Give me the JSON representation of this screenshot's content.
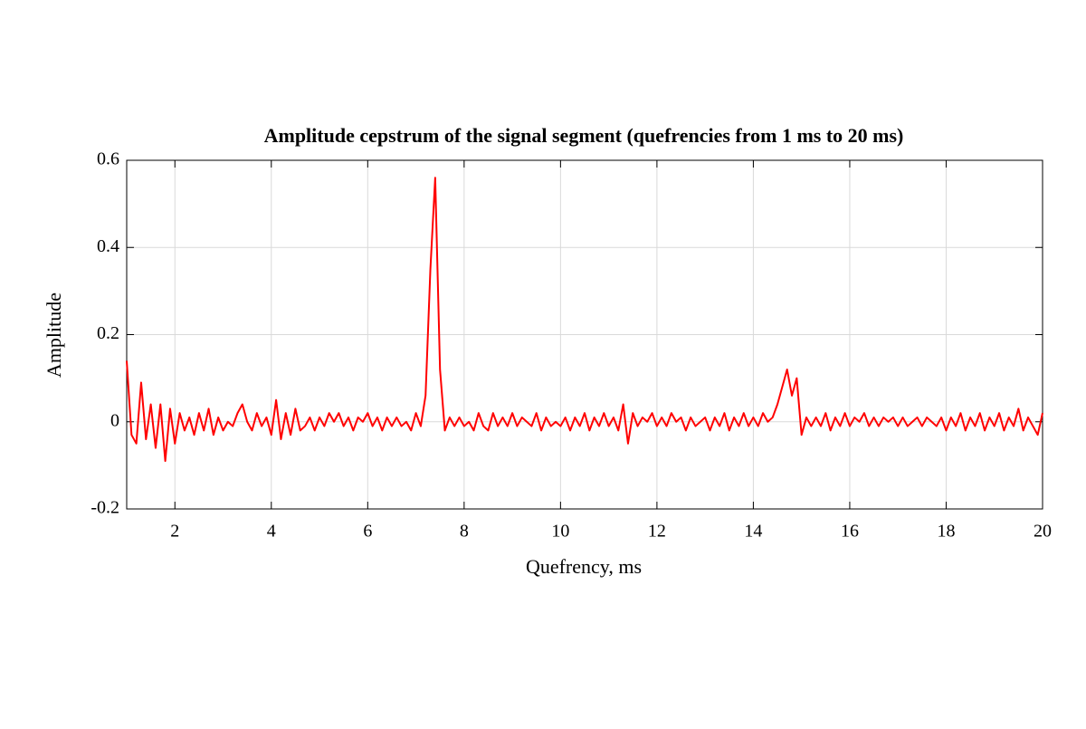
{
  "chart_data": {
    "type": "line",
    "title": "Amplitude cepstrum of the signal segment (quefrencies from 1 ms to 20 ms)",
    "xlabel": "Quefrency, ms",
    "ylabel": "Amplitude",
    "xlim": [
      1,
      20
    ],
    "ylim": [
      -0.2,
      0.6
    ],
    "xticks": [
      2,
      4,
      6,
      8,
      10,
      12,
      14,
      16,
      18,
      20
    ],
    "yticks": [
      -0.2,
      0,
      0.2,
      0.4,
      0.6
    ],
    "grid": true,
    "x": [
      1.0,
      1.1,
      1.2,
      1.3,
      1.4,
      1.5,
      1.6,
      1.7,
      1.8,
      1.9,
      2.0,
      2.1,
      2.2,
      2.3,
      2.4,
      2.5,
      2.6,
      2.7,
      2.8,
      2.9,
      3.0,
      3.1,
      3.2,
      3.3,
      3.4,
      3.5,
      3.6,
      3.7,
      3.8,
      3.9,
      4.0,
      4.1,
      4.2,
      4.3,
      4.4,
      4.5,
      4.6,
      4.7,
      4.8,
      4.9,
      5.0,
      5.1,
      5.2,
      5.3,
      5.4,
      5.5,
      5.6,
      5.7,
      5.8,
      5.9,
      6.0,
      6.1,
      6.2,
      6.3,
      6.4,
      6.5,
      6.6,
      6.7,
      6.8,
      6.9,
      7.0,
      7.1,
      7.2,
      7.3,
      7.4,
      7.5,
      7.6,
      7.7,
      7.8,
      7.9,
      8.0,
      8.1,
      8.2,
      8.3,
      8.4,
      8.5,
      8.6,
      8.7,
      8.8,
      8.9,
      9.0,
      9.1,
      9.2,
      9.3,
      9.4,
      9.5,
      9.6,
      9.7,
      9.8,
      9.9,
      10.0,
      10.1,
      10.2,
      10.3,
      10.4,
      10.5,
      10.6,
      10.7,
      10.8,
      10.9,
      11.0,
      11.1,
      11.2,
      11.3,
      11.4,
      11.5,
      11.6,
      11.7,
      11.8,
      11.9,
      12.0,
      12.1,
      12.2,
      12.3,
      12.4,
      12.5,
      12.6,
      12.7,
      12.8,
      12.9,
      13.0,
      13.1,
      13.2,
      13.3,
      13.4,
      13.5,
      13.6,
      13.7,
      13.8,
      13.9,
      14.0,
      14.1,
      14.2,
      14.3,
      14.4,
      14.5,
      14.6,
      14.7,
      14.8,
      14.9,
      15.0,
      15.1,
      15.2,
      15.3,
      15.4,
      15.5,
      15.6,
      15.7,
      15.8,
      15.9,
      16.0,
      16.1,
      16.2,
      16.3,
      16.4,
      16.5,
      16.6,
      16.7,
      16.8,
      16.9,
      17.0,
      17.1,
      17.2,
      17.3,
      17.4,
      17.5,
      17.6,
      17.7,
      17.8,
      17.9,
      18.0,
      18.1,
      18.2,
      18.3,
      18.4,
      18.5,
      18.6,
      18.7,
      18.8,
      18.9,
      19.0,
      19.1,
      19.2,
      19.3,
      19.4,
      19.5,
      19.6,
      19.7,
      19.8,
      19.9,
      20.0
    ],
    "series": [
      {
        "color": "#ff0000",
        "values": [
          0.14,
          -0.03,
          -0.05,
          0.09,
          -0.04,
          0.04,
          -0.06,
          0.04,
          -0.09,
          0.03,
          -0.05,
          0.02,
          -0.02,
          0.01,
          -0.03,
          0.02,
          -0.02,
          0.03,
          -0.03,
          0.01,
          -0.02,
          0.0,
          -0.01,
          0.02,
          0.04,
          0.0,
          -0.02,
          0.02,
          -0.01,
          0.01,
          -0.03,
          0.05,
          -0.04,
          0.02,
          -0.03,
          0.03,
          -0.02,
          -0.01,
          0.01,
          -0.02,
          0.01,
          -0.01,
          0.02,
          0.0,
          0.02,
          -0.01,
          0.01,
          -0.02,
          0.01,
          0.0,
          0.02,
          -0.01,
          0.01,
          -0.02,
          0.01,
          -0.01,
          0.01,
          -0.01,
          0.0,
          -0.02,
          0.02,
          -0.01,
          0.06,
          0.35,
          0.56,
          0.12,
          -0.02,
          0.01,
          -0.01,
          0.01,
          -0.01,
          0.0,
          -0.02,
          0.02,
          -0.01,
          -0.02,
          0.02,
          -0.01,
          0.01,
          -0.01,
          0.02,
          -0.01,
          0.01,
          0.0,
          -0.01,
          0.02,
          -0.02,
          0.01,
          -0.01,
          0.0,
          -0.01,
          0.01,
          -0.02,
          0.01,
          -0.01,
          0.02,
          -0.02,
          0.01,
          -0.01,
          0.02,
          -0.01,
          0.01,
          -0.02,
          0.04,
          -0.05,
          0.02,
          -0.01,
          0.01,
          0.0,
          0.02,
          -0.01,
          0.01,
          -0.01,
          0.02,
          0.0,
          0.01,
          -0.02,
          0.01,
          -0.01,
          0.0,
          0.01,
          -0.02,
          0.01,
          -0.01,
          0.02,
          -0.02,
          0.01,
          -0.01,
          0.02,
          -0.01,
          0.01,
          -0.01,
          0.02,
          0.0,
          0.01,
          0.04,
          0.08,
          0.12,
          0.06,
          0.1,
          -0.03,
          0.01,
          -0.01,
          0.01,
          -0.01,
          0.02,
          -0.02,
          0.01,
          -0.01,
          0.02,
          -0.01,
          0.01,
          0.0,
          0.02,
          -0.01,
          0.01,
          -0.01,
          0.01,
          0.0,
          0.01,
          -0.01,
          0.01,
          -0.01,
          0.0,
          0.01,
          -0.01,
          0.01,
          0.0,
          -0.01,
          0.01,
          -0.02,
          0.01,
          -0.01,
          0.02,
          -0.02,
          0.01,
          -0.01,
          0.02,
          -0.02,
          0.01,
          -0.01,
          0.02,
          -0.02,
          0.01,
          -0.01,
          0.03,
          -0.02,
          0.01,
          -0.01,
          -0.03,
          0.02
        ]
      }
    ]
  }
}
